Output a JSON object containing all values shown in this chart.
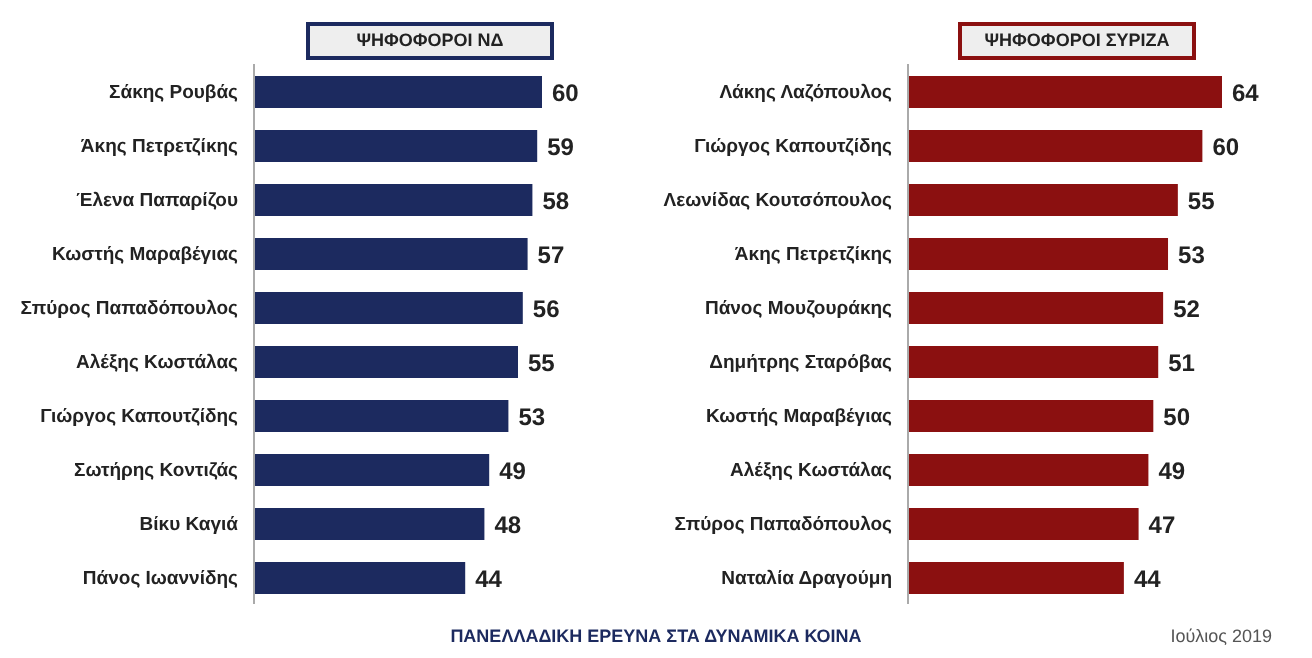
{
  "chart_data": [
    {
      "type": "bar",
      "orientation": "horizontal",
      "title": "ΨΗΦΟΦΟΡΟΙ ΝΔ",
      "categories": [
        "Σάκης Ρουβάς",
        "Άκης Πετρετζίκης",
        "Έλενα Παπαρίζου",
        "Κωστής Μαραβέγιας",
        "Σπύρος Παπαδόπουλος",
        "Αλέξης Κωστάλας",
        "Γιώργος Καπουτζίδης",
        "Σωτήρης Κοντιζάς",
        "Βίκυ Καγιά",
        "Πάνος Ιωαννίδης"
      ],
      "values": [
        60,
        59,
        58,
        57,
        56,
        55,
        53,
        49,
        48,
        44
      ],
      "color": "#1c2a5f",
      "data_labels": true,
      "annotations": [
        "ΠΑΝΕΛΛΑΔΙΚΗ ΕΡΕΥΝΑ ΣΤΑ ΔΥΝΑΜΙΚΑ ΚΟΙΝΑ"
      ]
    },
    {
      "type": "bar",
      "orientation": "horizontal",
      "title": "ΨΗΦΟΦΟΡΟΙ ΣΥΡΙΖΑ",
      "categories": [
        "Λάκης Λαζόπουλος",
        "Γιώργος Καπουτζίδης",
        "Λεωνίδας Κουτσόπουλος",
        "Άκης Πετρετζίκης",
        "Πάνος Μουζουράκης",
        "Δημήτρης Σταρόβας",
        "Κωστής Μαραβέγιας",
        "Αλέξης Κωστάλας",
        "Σπύρος Παπαδόπουλος",
        "Ναταλία Δραγούμη"
      ],
      "values": [
        64,
        60,
        55,
        53,
        52,
        51,
        50,
        49,
        47,
        44
      ],
      "color": "#8b1010",
      "data_labels": true,
      "annotations": [
        "Ιούλιος 2019"
      ]
    }
  ]
}
